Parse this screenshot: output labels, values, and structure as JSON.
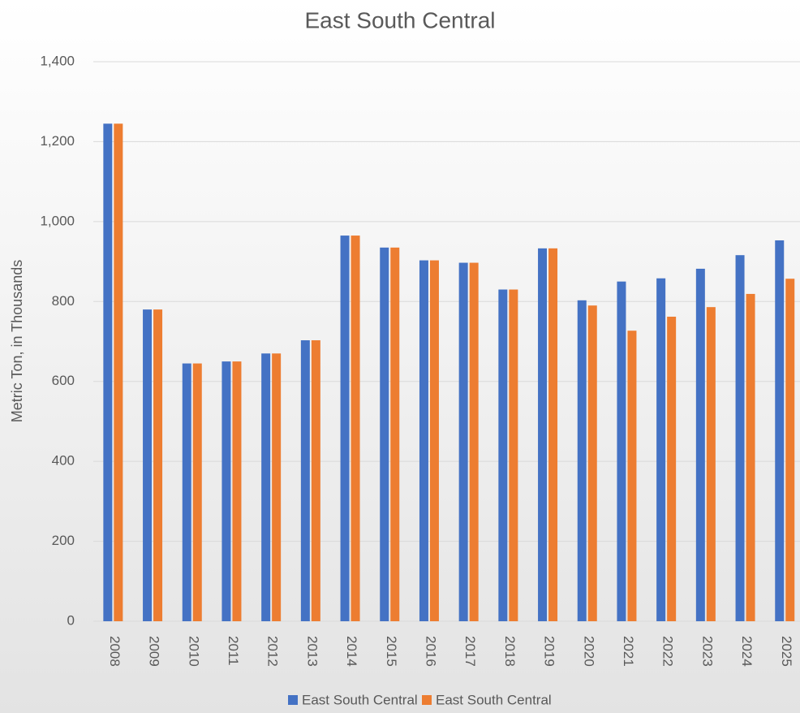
{
  "chart_data": {
    "type": "bar",
    "title": "East South Central",
    "y_label": "Metric Ton, in Thousands",
    "categories": [
      "2008",
      "2009",
      "2010",
      "2011",
      "2012",
      "2013",
      "2014",
      "2015",
      "2016",
      "2017",
      "2018",
      "2019",
      "2020",
      "2021",
      "2022",
      "2023",
      "2024",
      "2025"
    ],
    "series": [
      {
        "name": "East South Central",
        "color": "#4472c4",
        "values": [
          1245,
          780,
          645,
          650,
          670,
          703,
          965,
          935,
          903,
          897,
          830,
          933,
          803,
          850,
          858,
          882,
          916,
          953
        ]
      },
      {
        "name": "East South Central",
        "color": "#ed7d31",
        "values": [
          1245,
          780,
          645,
          650,
          670,
          703,
          965,
          935,
          903,
          897,
          830,
          933,
          790,
          727,
          762,
          786,
          819,
          857
        ]
      }
    ],
    "ylim": [
      0,
      1400
    ],
    "yticks": [
      0,
      200,
      400,
      600,
      800,
      {
        "value": 1000,
        "label": "1,000"
      },
      {
        "value": 1200,
        "label": "1,200"
      },
      {
        "value": 1400,
        "label": "1,400"
      }
    ],
    "grid": true,
    "legend": "bottom"
  }
}
